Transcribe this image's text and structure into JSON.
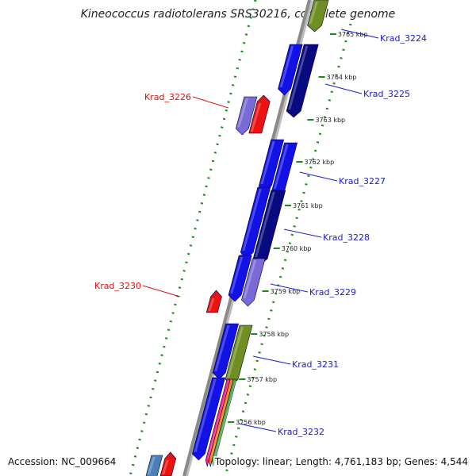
{
  "header": {
    "title": "Kineococcus radiotolerans SRS30216, complete genome"
  },
  "footer": {
    "accession": "Accession: NC_009664",
    "stats": "Topology: linear; Length: 4,761,183 bp; Genes: 4,544"
  },
  "ticks": [
    "3765 kbp",
    "3764 kbp",
    "3763 kbp",
    "3762 kbp",
    "3761 kbp",
    "3760 kbp",
    "3759 kbp",
    "3758 kbp",
    "3757 kbp",
    "3756 kbp"
  ],
  "gene_labels": [
    {
      "name": "Krad_3224",
      "strand": "forward"
    },
    {
      "name": "Krad_3225",
      "strand": "forward"
    },
    {
      "name": "Krad_3226",
      "strand": "reverse"
    },
    {
      "name": "Krad_3227",
      "strand": "forward"
    },
    {
      "name": "Krad_3228",
      "strand": "forward"
    },
    {
      "name": "Krad_3229",
      "strand": "forward"
    },
    {
      "name": "Krad_3230",
      "strand": "reverse"
    },
    {
      "name": "Krad_3231",
      "strand": "forward"
    },
    {
      "name": "Krad_3232",
      "strand": "forward"
    }
  ],
  "colors": {
    "forward_label": "#1a1acc",
    "reverse_label": "#dd1111",
    "cds_blue": "#1212e6",
    "cds_navy": "#0a0a80",
    "cds_olive": "#6f8f22",
    "cds_lavender": "#7a6ad8",
    "cds_red": "#ee1111",
    "cds_steel": "#4a80b8",
    "backbone": "#8a8a8a",
    "guide_dots": "#1a8a1a"
  }
}
